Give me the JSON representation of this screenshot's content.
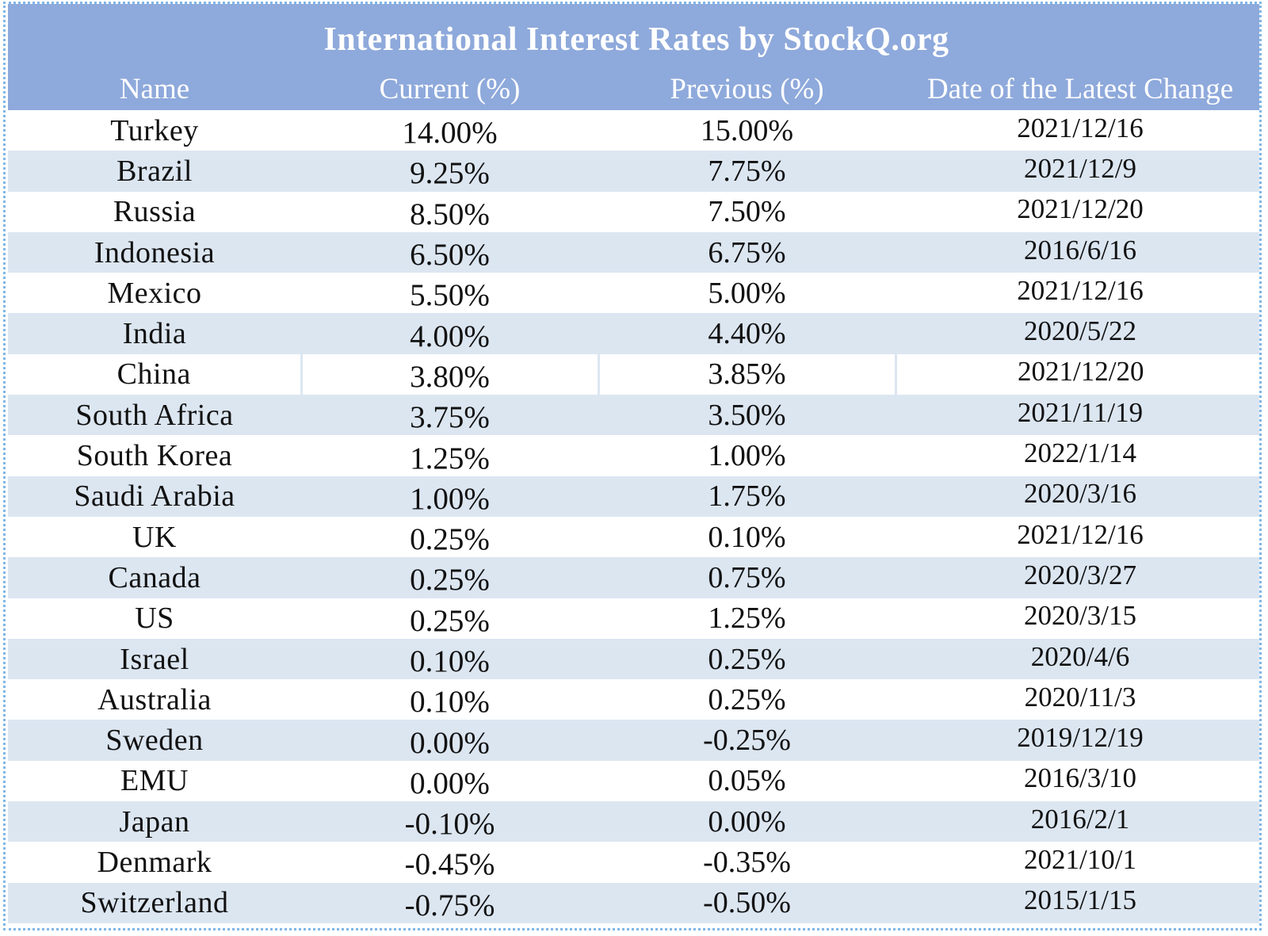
{
  "chart_data": {
    "type": "table",
    "title": "International Interest Rates by StockQ.org",
    "columns": [
      "Name",
      "Current (%)",
      "Previous (%)",
      "Date of the Latest Change"
    ],
    "rows": [
      [
        "Turkey",
        "14.00%",
        "15.00%",
        "2021/12/16"
      ],
      [
        "Brazil",
        "9.25%",
        "7.75%",
        "2021/12/9"
      ],
      [
        "Russia",
        "8.50%",
        "7.50%",
        "2021/12/20"
      ],
      [
        "Indonesia",
        "6.50%",
        "6.75%",
        "2016/6/16"
      ],
      [
        "Mexico",
        "5.50%",
        "5.00%",
        "2021/12/16"
      ],
      [
        "India",
        "4.00%",
        "4.40%",
        "2020/5/22"
      ],
      [
        "China",
        "3.80%",
        "3.85%",
        "2021/12/20"
      ],
      [
        "South Africa",
        "3.75%",
        "3.50%",
        "2021/11/19"
      ],
      [
        "South Korea",
        "1.25%",
        "1.00%",
        "2022/1/14"
      ],
      [
        "Saudi Arabia",
        "1.00%",
        "1.75%",
        "2020/3/16"
      ],
      [
        "UK",
        "0.25%",
        "0.10%",
        "2021/12/16"
      ],
      [
        "Canada",
        "0.25%",
        "0.75%",
        "2020/3/27"
      ],
      [
        "US",
        "0.25%",
        "1.25%",
        "2020/3/15"
      ],
      [
        "Israel",
        "0.10%",
        "0.25%",
        "2020/4/6"
      ],
      [
        "Australia",
        "0.10%",
        "0.25%",
        "2020/11/3"
      ],
      [
        "Sweden",
        "0.00%",
        "-0.25%",
        "2019/12/19"
      ],
      [
        "EMU",
        "0.00%",
        "0.05%",
        "2016/3/10"
      ],
      [
        "Japan",
        "-0.10%",
        "0.00%",
        "2016/2/1"
      ],
      [
        "Denmark",
        "-0.45%",
        "-0.35%",
        "2021/10/1"
      ],
      [
        "Switzerland",
        "-0.75%",
        "-0.50%",
        "2015/1/15"
      ]
    ]
  },
  "colors": {
    "header_background": "#8ea9db",
    "header_text": "#ffffff",
    "stripe_row": "#dce6f1",
    "plain_row": "#ffffff",
    "frame_border": "#7fb6e6"
  }
}
